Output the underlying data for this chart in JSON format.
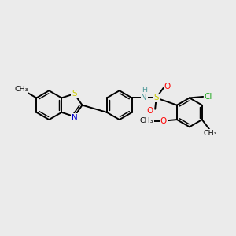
{
  "background_color": "#ebebeb",
  "bond_color": "#000000",
  "bond_width": 1.4,
  "fig_width": 3.0,
  "fig_height": 3.0,
  "dpi": 100,
  "colors": {
    "S_yellow": "#cccc00",
    "N_blue": "#0000cc",
    "N_teal": "#4d9999",
    "H_teal": "#4d9999",
    "O_red": "#ff0000",
    "Cl_green": "#22aa22",
    "C_black": "#000000"
  },
  "xlim": [
    0,
    10
  ],
  "ylim": [
    0,
    10
  ]
}
